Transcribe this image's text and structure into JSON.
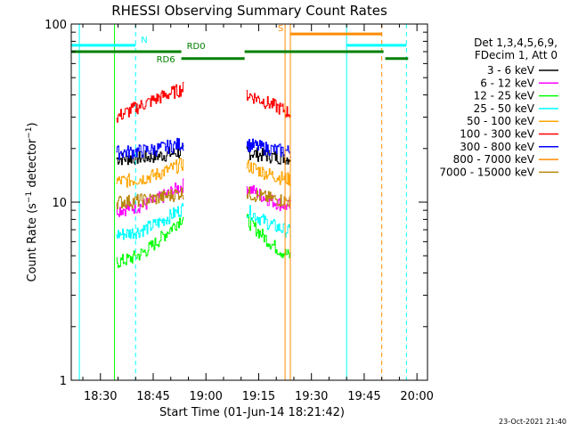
{
  "chart_data": {
    "type": "line",
    "title": "RHESSI Observing Summary Count Rates",
    "xlabel": "Start Time (01-Jun-14 18:21:42)",
    "ylabel": "Count Rate (s⁻¹ detector⁻¹)",
    "ylabel_parts": {
      "main": "Count Rate (s",
      "exp1": "−1",
      "mid": " detector",
      "exp2": "−1",
      "end": ")"
    },
    "x_range": [
      "18:21:42",
      "20:03:00"
    ],
    "y_range": [
      1,
      100
    ],
    "y_scale": "log",
    "x_ticks": [
      "18:30",
      "18:45",
      "19:00",
      "19:15",
      "19:30",
      "19:45",
      "20:00"
    ],
    "y_ticks": [
      "1",
      "10",
      "100"
    ],
    "grid": false,
    "legend_position": "right",
    "legend_header": [
      "Det 1,3,4,5,6,9,",
      "FDecim 1, Att 0"
    ],
    "series": [
      {
        "name": "3 - 6 keV",
        "color": "#000000",
        "level": 17.5,
        "amp": 2.5
      },
      {
        "name": "6 - 12 keV",
        "color": "#ff00ff",
        "level": 9.0,
        "amp": 5.0
      },
      {
        "name": "12 - 25 keV",
        "color": "#00ff00",
        "level": 4.5,
        "amp": 5.5
      },
      {
        "name": "25 - 50 keV",
        "color": "#00ffff",
        "level": 6.5,
        "amp": 4.0
      },
      {
        "name": "50 - 100 keV",
        "color": "#ffa500",
        "level": 13.0,
        "amp": 5.0
      },
      {
        "name": "100 - 300 keV",
        "color": "#ff0000",
        "level": 30.0,
        "amp": 10.0
      },
      {
        "name": "300 - 800 keV",
        "color": "#0000ff",
        "level": 19.0,
        "amp": 3.5
      },
      {
        "name": "800 - 7000 keV",
        "color": "#ff8c00",
        "level": 0,
        "amp": 0
      },
      {
        "name": "7000 - 15000 keV",
        "color": "#b8860b",
        "level": 10.0,
        "amp": 2.0
      }
    ],
    "time_windows": [
      [
        "18:34:30",
        "18:53:30"
      ],
      [
        "19:11:30",
        "19:24:00"
      ]
    ],
    "flags": [
      {
        "label": "N",
        "color": "#00ffff",
        "segments": [
          [
            "18:21:42",
            "18:40:00"
          ],
          [
            "19:40:00",
            "19:57:00"
          ]
        ],
        "level": 76
      },
      {
        "label": "S",
        "color": "#ff8c00",
        "segments": [
          [
            "19:24:00",
            "19:50:00"
          ]
        ],
        "level": 88
      },
      {
        "label": "RD0",
        "color": "#008000",
        "segments": [
          [
            "18:21:42",
            "18:53:00"
          ],
          [
            "19:11:00",
            "19:50:30"
          ]
        ],
        "level": 70
      },
      {
        "label": "RD6",
        "color": "#008000",
        "segments": [
          [
            "18:53:00",
            "19:11:00"
          ],
          [
            "19:51:00",
            "19:57:30"
          ]
        ],
        "level": 64
      }
    ],
    "vertical_markers": [
      {
        "time": "18:24:00",
        "color": "#00ffff",
        "style": "solid"
      },
      {
        "time": "18:40:00",
        "color": "#00ffff",
        "style": "dashed"
      },
      {
        "time": "18:34:00",
        "color": "#00ff00",
        "style": "solid"
      },
      {
        "time": "19:22:30",
        "color": "#ff8c00",
        "style": "solid"
      },
      {
        "time": "19:24:00",
        "color": "#ff8c00",
        "style": "solid"
      },
      {
        "time": "19:40:00",
        "color": "#00ffff",
        "style": "solid"
      },
      {
        "time": "19:50:00",
        "color": "#ff8c00",
        "style": "dashed"
      },
      {
        "time": "19:57:00",
        "color": "#00ffff",
        "style": "dashed"
      }
    ],
    "footer_date": "23-Oct-2021 21:40"
  }
}
